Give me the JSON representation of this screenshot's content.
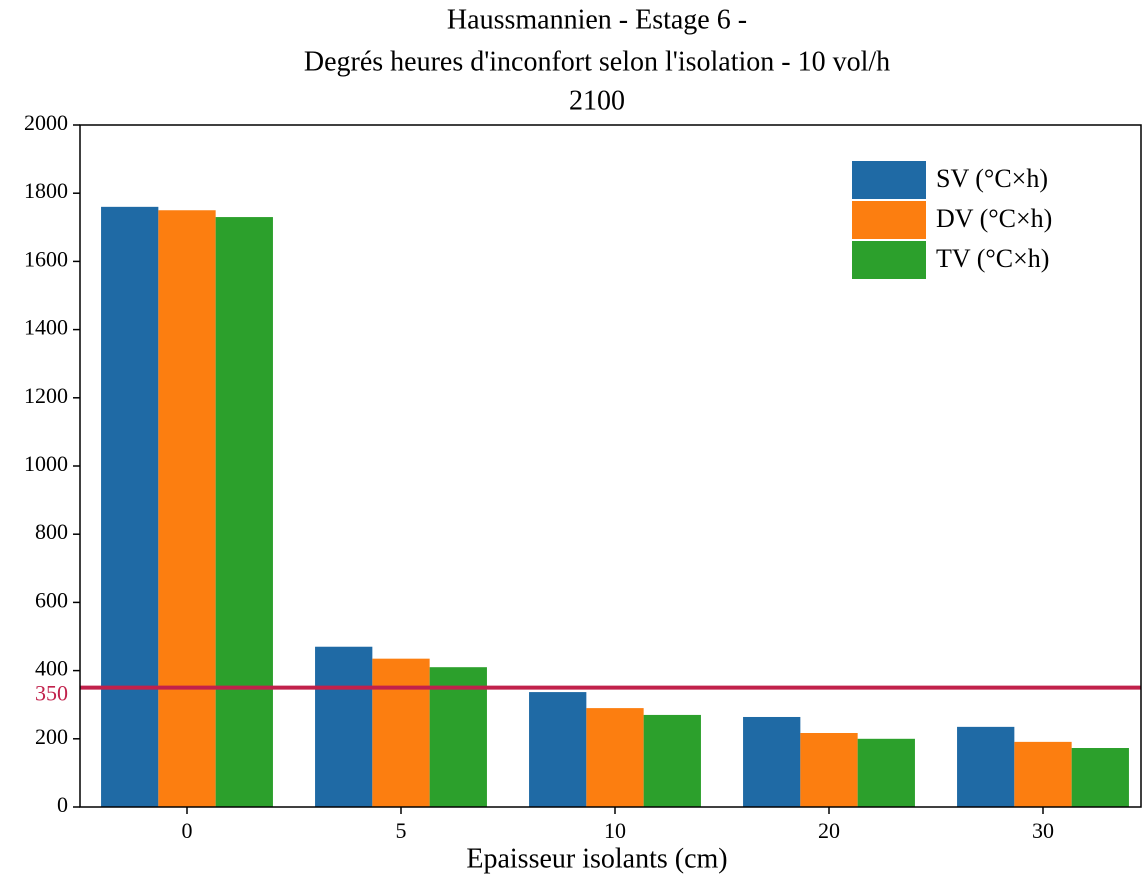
{
  "chart_data": {
    "type": "bar",
    "title_lines": [
      "Haussmannien - Estage 6 -",
      "Degrés heures d'inconfort selon l'isolation - 10 vol/h",
      "2100"
    ],
    "x_label": "Epaisseur isolants (cm)",
    "categories": [
      "0",
      "5",
      "10",
      "20",
      "30"
    ],
    "series": [
      {
        "name": "SV (°C×h)",
        "color": "#1f6aa5",
        "values": [
          1760,
          470,
          337,
          264,
          235
        ]
      },
      {
        "name": "DV (°C×h)",
        "color": "#fc7e10",
        "values": [
          1750,
          435,
          290,
          217,
          191
        ]
      },
      {
        "name": "TV (°C×h)",
        "color": "#2ca02c",
        "values": [
          1730,
          410,
          270,
          200,
          173
        ]
      }
    ],
    "reference_line": {
      "value": 350,
      "color": "#c1214b"
    },
    "ylim": [
      0,
      2000
    ],
    "yticks": [
      0,
      200,
      400,
      600,
      800,
      1000,
      1200,
      1400,
      1600,
      1800,
      2000
    ],
    "legend": "upper right"
  }
}
